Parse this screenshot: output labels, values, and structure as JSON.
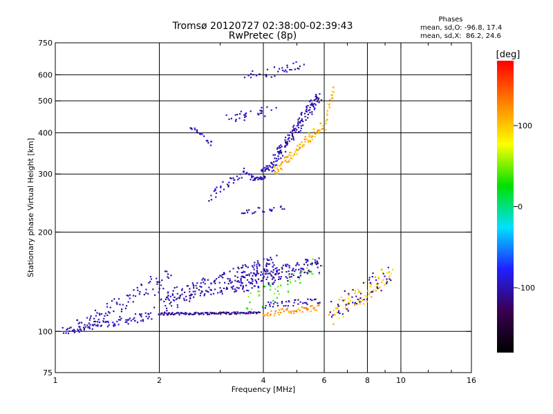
{
  "chart_data": {
    "type": "scatter",
    "title": "Tromsø 20120727 02:38:00-02:39:43",
    "subtitle": "RwPretec (8p)",
    "xlabel": "Frequency [MHz]",
    "ylabel": "Stationary phase Virtual Height [km]",
    "x_scale": "log",
    "y_scale": "log",
    "xlim": [
      1,
      16
    ],
    "ylim": [
      75,
      750
    ],
    "x_ticks": [
      1,
      2,
      4,
      6,
      8,
      10,
      16
    ],
    "x_minor_ticks": [
      3,
      5,
      7,
      9,
      12,
      14
    ],
    "y_ticks": [
      75,
      100,
      200,
      300,
      400,
      500,
      600,
      750
    ],
    "x_grid": [
      2,
      4,
      6,
      8,
      10
    ],
    "y_grid": [
      100,
      200,
      300,
      400,
      500,
      600
    ],
    "grid": true,
    "legend": {
      "title": "Phases",
      "lines": [
        "mean, sd,O: -96.8, 17.4",
        "mean, sd,X:  86.2, 24.6"
      ]
    },
    "colorbar": {
      "label": "[deg]",
      "ticks": [
        100,
        0,
        -100
      ],
      "range": [
        -180,
        180
      ],
      "colors": [
        "#000000",
        "#3a0050",
        "#2020ff",
        "#00e0ff",
        "#00e000",
        "#ffff00",
        "#ff8000",
        "#ff0000"
      ]
    },
    "series": [
      {
        "segments": [
          {
            "x0": 1.05,
            "x1": 1.9,
            "y0": 100,
            "y1": 112,
            "n": 90,
            "phase": -100,
            "jx": 0.02,
            "jy": 0.03
          },
          {
            "x0": 1.15,
            "x1": 2.15,
            "y0": 103,
            "y1": 148,
            "n": 85,
            "phase": -100,
            "jx": 0.02,
            "jy": 0.06
          },
          {
            "x0": 2.0,
            "x1": 3.9,
            "y0": 113,
            "y1": 114,
            "n": 120,
            "phase": -110,
            "jx": 0.005,
            "jy": 0.008
          },
          {
            "x0": 2.0,
            "x1": 4.4,
            "y0": 122,
            "y1": 160,
            "n": 210,
            "phase": -100,
            "jx": 0.04,
            "jy": 0.07
          },
          {
            "x0": 3.3,
            "x1": 5.8,
            "y0": 138,
            "y1": 160,
            "n": 160,
            "phase": -100,
            "jx": 0.02,
            "jy": 0.06
          },
          {
            "x0": 4.0,
            "x1": 5.8,
            "y0": 113,
            "y1": 118,
            "n": 50,
            "phase": 120,
            "jx": 0.01,
            "jy": 0.02
          },
          {
            "x0": 4.0,
            "x1": 5.8,
            "y0": 120,
            "y1": 124,
            "n": 40,
            "phase": -100,
            "jx": 0.01,
            "jy": 0.02
          },
          {
            "x0": 3.7,
            "x1": 4.0,
            "y0": 290,
            "y1": 292,
            "n": 20,
            "phase": -100,
            "jx": 0.01,
            "jy": 0.01
          },
          {
            "x0": 4.0,
            "x1": 5.8,
            "y0": 295,
            "y1": 520,
            "n": 170,
            "phase": -100,
            "jx": 0.02,
            "jy": 0.04
          },
          {
            "x0": 4.3,
            "x1": 5.9,
            "y0": 305,
            "y1": 420,
            "n": 90,
            "phase": 110,
            "jx": 0.01,
            "jy": 0.03
          },
          {
            "x0": 2.8,
            "x1": 3.5,
            "y0": 255,
            "y1": 305,
            "n": 30,
            "phase": -100,
            "jx": 0.02,
            "jy": 0.03
          },
          {
            "x0": 3.5,
            "x1": 3.8,
            "y0": 305,
            "y1": 292,
            "n": 15,
            "phase": -100,
            "jx": 0.01,
            "jy": 0.01
          },
          {
            "x0": 3.2,
            "x1": 4.2,
            "y0": 440,
            "y1": 470,
            "n": 30,
            "phase": -100,
            "jx": 0.05,
            "jy": 0.03
          },
          {
            "x0": 3.4,
            "x1": 4.6,
            "y0": 230,
            "y1": 238,
            "n": 22,
            "phase": -100,
            "jx": 0.02,
            "jy": 0.02
          },
          {
            "x0": 3.6,
            "x1": 5.2,
            "y0": 590,
            "y1": 640,
            "n": 35,
            "phase": -100,
            "jx": 0.04,
            "jy": 0.03
          },
          {
            "x0": 2.45,
            "x1": 2.85,
            "y0": 420,
            "y1": 370,
            "n": 20,
            "phase": -100,
            "jx": 0.01,
            "jy": 0.02
          },
          {
            "x0": 6.3,
            "x1": 9.3,
            "y0": 112,
            "y1": 150,
            "n": 80,
            "phase": 100,
            "jx": 0.03,
            "jy": 0.07
          },
          {
            "x0": 6.3,
            "x1": 9.3,
            "y0": 115,
            "y1": 150,
            "n": 50,
            "phase": -100,
            "jx": 0.03,
            "jy": 0.07
          },
          {
            "x0": 6.0,
            "x1": 6.4,
            "y0": 410,
            "y1": 560,
            "n": 25,
            "phase": 100,
            "jx": 0.01,
            "jy": 0.03
          },
          {
            "x0": 3.5,
            "x1": 5.8,
            "y0": 120,
            "y1": 160,
            "n": 45,
            "phase": 40,
            "jx": 0.03,
            "jy": 0.07
          }
        ]
      }
    ]
  }
}
